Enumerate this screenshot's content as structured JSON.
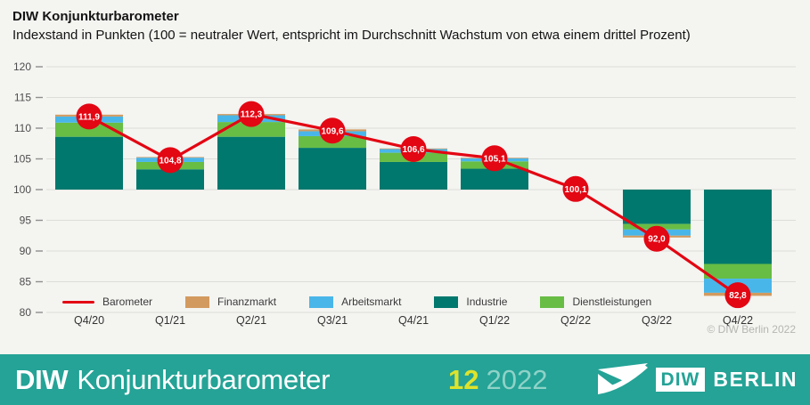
{
  "header": {
    "title": "DIW Konjunkturbarometer",
    "subtitle": "Indexstand in Punkten (100 = neutraler Wert, entspricht im Durchschnitt Wachstum von etwa einem drittel Prozent)"
  },
  "chart_data": {
    "type": "bar",
    "subtype": "stacked-bar-with-line",
    "baseline": 100,
    "categories": [
      "Q4/20",
      "Q1/21",
      "Q2/21",
      "Q3/21",
      "Q4/21",
      "Q1/22",
      "Q2/22",
      "Q3/22",
      "Q4/22"
    ],
    "series": [
      {
        "name": "Industrie",
        "color": "#00786d",
        "values": [
          8.6,
          3.3,
          8.6,
          6.8,
          4.5,
          3.4,
          0,
          -5.6,
          -12.1
        ]
      },
      {
        "name": "Dienstleistungen",
        "color": "#68bd45",
        "values": [
          2.3,
          1.2,
          2.4,
          1.9,
          1.5,
          1.2,
          0,
          -0.9,
          -2.4
        ]
      },
      {
        "name": "Arbeitsmarkt",
        "color": "#49b6e9",
        "values": [
          1.0,
          0.7,
          1.1,
          0.8,
          0.6,
          0.5,
          0,
          -1.0,
          -2.3
        ]
      },
      {
        "name": "Finanzmarkt",
        "color": "#d29a5e",
        "values": [
          0.3,
          0.1,
          0.2,
          0.3,
          0.1,
          0.1,
          0,
          -0.3,
          -0.5
        ]
      }
    ],
    "line_series": {
      "name": "Barometer",
      "color": "#e30613",
      "values": [
        111.9,
        104.8,
        112.3,
        109.6,
        106.6,
        105.1,
        100.1,
        92.0,
        82.8
      ],
      "point_labels": [
        "111,9",
        "104,8",
        "112,3",
        "109,6",
        "106,6",
        "105,1",
        "100,1",
        "92,0",
        "82,8"
      ]
    },
    "ylim": [
      80,
      120
    ],
    "ytick_step": 5,
    "yticks": [
      120,
      115,
      110,
      105,
      100,
      95,
      90,
      85,
      80
    ],
    "grid": true,
    "legend_position": "inside-bottom-left",
    "colors": {
      "grid": "#dcdcd9",
      "tick_dash": "#8f8f8f",
      "tick_text": "#4d4d4d",
      "xlabel_text": "#333333",
      "point_label_text": "#ffffff"
    }
  },
  "legend": {
    "items": [
      {
        "label": "Barometer",
        "kind": "line",
        "color": "#e30613"
      },
      {
        "label": "Finanzmarkt",
        "kind": "box",
        "color": "#d29a5e"
      },
      {
        "label": "Arbeitsmarkt",
        "kind": "box",
        "color": "#49b6e9"
      },
      {
        "label": "Industrie",
        "kind": "box",
        "color": "#00786d"
      },
      {
        "label": "Dienstleistungen",
        "kind": "box",
        "color": "#68bd45"
      }
    ]
  },
  "copyright": "© DIW Berlin 2022",
  "footer": {
    "brand_bold": "DIW",
    "brand_rest": "Konjunkturbarometer",
    "issue_number": "12",
    "issue_year": "2022",
    "logo_diw": "DIW",
    "logo_berlin": "BERLIN",
    "colors": {
      "background": "#24a396",
      "issue_number": "#dfe32b",
      "issue_year": "#8fd2c8"
    }
  }
}
